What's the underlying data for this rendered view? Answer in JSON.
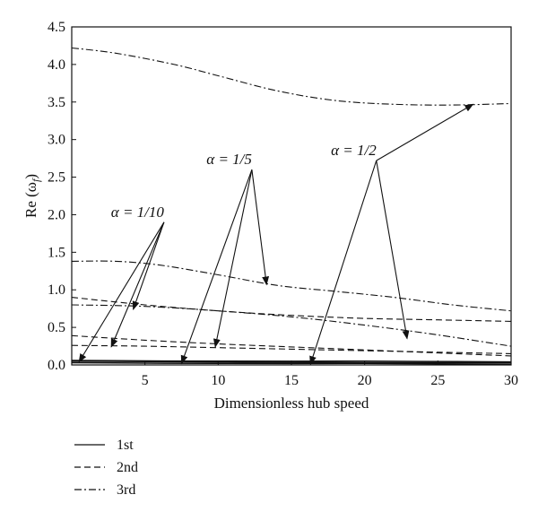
{
  "chart_data": {
    "type": "line",
    "xlabel": "Dimensionless hub speed",
    "ylabel": "Re (ω",
    "ylabel_sub": "f",
    "ylabel_close": ")",
    "xlim": [
      0,
      30
    ],
    "ylim": [
      0,
      4.5
    ],
    "xticks": [
      5,
      10,
      15,
      20,
      25,
      30
    ],
    "yticks": [
      0.0,
      0.5,
      1.0,
      1.5,
      2.0,
      2.5,
      3.0,
      3.5,
      4.0,
      4.5
    ],
    "ytick_labels": [
      "0.0",
      "0.5",
      "1.0",
      "1.5",
      "2.0",
      "2.5",
      "3.0",
      "3.5",
      "4.0",
      "4.5"
    ],
    "xtick_labels": [
      "5",
      "10",
      "15",
      "20",
      "25",
      "30"
    ],
    "grid": false,
    "legend": {
      "placement": "below-left",
      "entries": [
        {
          "label": "1st",
          "dash": "solid"
        },
        {
          "label": "2nd",
          "dash": "dashed"
        },
        {
          "label": "3rd",
          "dash": "dashdot"
        }
      ]
    },
    "series": [
      {
        "mode": "1st",
        "alpha": "1/10",
        "x": [
          0,
          10,
          20,
          30
        ],
        "y": [
          0.03,
          0.02,
          0.02,
          0.01
        ]
      },
      {
        "mode": "1st",
        "alpha": "1/5",
        "x": [
          0,
          10,
          20,
          30
        ],
        "y": [
          0.05,
          0.04,
          0.03,
          0.03
        ]
      },
      {
        "mode": "1st",
        "alpha": "1/2",
        "x": [
          0,
          10,
          20,
          30
        ],
        "y": [
          0.06,
          0.05,
          0.05,
          0.04
        ]
      },
      {
        "mode": "2nd",
        "alpha": "1/10",
        "x": [
          0,
          5,
          10,
          15,
          20,
          25,
          30
        ],
        "y": [
          0.26,
          0.25,
          0.23,
          0.21,
          0.19,
          0.17,
          0.15
        ]
      },
      {
        "mode": "2nd",
        "alpha": "1/5",
        "x": [
          0,
          5,
          10,
          15,
          20,
          25,
          30
        ],
        "y": [
          0.39,
          0.33,
          0.28,
          0.24,
          0.2,
          0.16,
          0.12
        ]
      },
      {
        "mode": "2nd",
        "alpha": "1/2",
        "x": [
          0,
          5,
          10,
          15,
          20,
          25,
          30
        ],
        "y": [
          0.9,
          0.8,
          0.72,
          0.66,
          0.62,
          0.6,
          0.58
        ]
      },
      {
        "mode": "3rd",
        "alpha": "1/10",
        "x": [
          0,
          5,
          10,
          15,
          20,
          25,
          30
        ],
        "y": [
          0.8,
          0.78,
          0.72,
          0.64,
          0.53,
          0.4,
          0.25
        ]
      },
      {
        "mode": "3rd",
        "alpha": "1/5",
        "x": [
          0,
          3,
          6,
          10,
          14,
          18,
          22,
          26,
          30
        ],
        "y": [
          1.38,
          1.38,
          1.33,
          1.2,
          1.06,
          0.98,
          0.9,
          0.8,
          0.72
        ]
      },
      {
        "mode": "3rd",
        "alpha": "1/2",
        "x": [
          0,
          3,
          7,
          10,
          14,
          18,
          22,
          26,
          30
        ],
        "y": [
          4.22,
          4.15,
          4.0,
          3.85,
          3.65,
          3.52,
          3.47,
          3.46,
          3.48
        ]
      }
    ],
    "annotations": [
      {
        "label": "α = 1/10",
        "label_at": [
          6.3,
          1.9
        ],
        "targets": [
          [
            0.5,
            0.04
          ],
          [
            2.7,
            0.24
          ],
          [
            4.2,
            0.74
          ]
        ]
      },
      {
        "label": "α = 1/5",
        "label_at": [
          12.3,
          2.6
        ],
        "targets": [
          [
            7.5,
            0.02
          ],
          [
            9.8,
            0.24
          ],
          [
            13.3,
            1.07
          ]
        ]
      },
      {
        "label": "α = 1/2",
        "label_at": [
          20.8,
          2.72
        ],
        "targets": [
          [
            16.3,
            0.01
          ],
          [
            22.9,
            0.35
          ],
          [
            27.4,
            3.47
          ]
        ]
      }
    ]
  }
}
